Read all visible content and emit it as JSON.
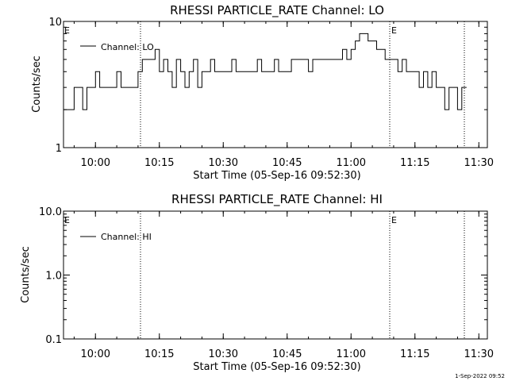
{
  "chart_data": [
    {
      "type": "line",
      "title": "RHESSI PARTICLE_RATE Channel: LO",
      "xlabel": "Start Time (05-Sep-16 09:52:30)",
      "ylabel": "Counts/sec",
      "yscale": "log",
      "ylim": [
        1,
        10
      ],
      "yticks": [
        "1",
        "10"
      ],
      "xlim": [
        "09:52:30",
        "11:32:00"
      ],
      "xticks": [
        "10:00",
        "10:15",
        "10:30",
        "10:45",
        "11:00",
        "11:15",
        "11:30"
      ],
      "legend_position": "top-left",
      "series": [
        {
          "name": "Channel: LO",
          "x": [
            "09:52:30",
            "09:54:00",
            "09:55:00",
            "09:55:30",
            "09:56:00",
            "09:57:00",
            "09:58:00",
            "09:59:00",
            "10:00:00",
            "10:01:00",
            "10:02:00",
            "10:03:00",
            "10:04:00",
            "10:05:00",
            "10:06:00",
            "10:07:00",
            "10:08:00",
            "10:09:00",
            "10:10:00",
            "10:11:00",
            "10:12:00",
            "10:13:00",
            "10:14:00",
            "10:15:00",
            "10:16:00",
            "10:17:00",
            "10:18:00",
            "10:19:00",
            "10:20:00",
            "10:21:00",
            "10:22:00",
            "10:23:00",
            "10:24:00",
            "10:25:00",
            "10:26:00",
            "10:27:00",
            "10:28:00",
            "10:29:00",
            "10:30:00",
            "10:31:00",
            "10:32:00",
            "10:33:00",
            "10:34:00",
            "10:35:00",
            "10:36:00",
            "10:37:00",
            "10:38:00",
            "10:39:00",
            "10:40:00",
            "10:41:00",
            "10:42:00",
            "10:43:00",
            "10:44:00",
            "10:45:00",
            "10:46:00",
            "10:47:00",
            "10:48:00",
            "10:49:00",
            "10:50:00",
            "10:51:00",
            "10:52:00",
            "10:53:00",
            "10:54:00",
            "10:55:00",
            "10:56:00",
            "10:57:00",
            "10:58:00",
            "10:59:00",
            "11:00:00",
            "11:01:00",
            "11:02:00",
            "11:03:00",
            "11:04:00",
            "11:05:00",
            "11:06:00",
            "11:07:00",
            "11:08:00",
            "11:09:00",
            "11:10:00",
            "11:11:00",
            "11:12:00",
            "11:13:00",
            "11:14:00",
            "11:15:00",
            "11:16:00",
            "11:17:00",
            "11:18:00",
            "11:19:00",
            "11:20:00",
            "11:21:00",
            "11:22:00",
            "11:23:00",
            "11:24:00",
            "11:25:00",
            "11:26:00"
          ],
          "y": [
            2,
            2,
            3,
            3,
            3,
            2,
            3,
            3,
            4,
            3,
            3,
            3,
            3,
            4,
            3,
            3,
            3,
            3,
            4,
            5,
            5,
            5,
            6,
            4,
            5,
            4,
            3,
            5,
            4,
            3,
            4,
            5,
            3,
            4,
            4,
            5,
            4,
            4,
            4,
            4,
            5,
            4,
            4,
            4,
            4,
            4,
            5,
            4,
            4,
            4,
            5,
            4,
            4,
            4,
            5,
            5,
            5,
            5,
            4,
            5,
            5,
            5,
            5,
            5,
            5,
            5,
            6,
            5,
            6,
            7,
            8,
            8,
            7,
            7,
            6,
            6,
            5,
            5,
            5,
            4,
            5,
            4,
            4,
            4,
            3,
            4,
            3,
            4,
            3,
            3,
            2,
            3,
            3,
            2,
            3
          ]
        }
      ],
      "annotations": [
        "E",
        "E"
      ]
    },
    {
      "type": "line",
      "title": "RHESSI PARTICLE_RATE Channel: HI",
      "xlabel": "Start Time (05-Sep-16 09:52:30)",
      "ylabel": "Counts/sec",
      "yscale": "log",
      "ylim": [
        0.1,
        10
      ],
      "yticks": [
        "0.1",
        "1.0",
        "10.0"
      ],
      "xlim": [
        "09:52:30",
        "11:32:00"
      ],
      "xticks": [
        "10:00",
        "10:15",
        "10:30",
        "10:45",
        "11:00",
        "11:15",
        "11:30"
      ],
      "legend_position": "top-left",
      "series": [
        {
          "name": "Channel: HI",
          "x": [],
          "y": []
        }
      ],
      "annotations": [
        "E",
        "E"
      ]
    }
  ],
  "footer": {
    "timestamp": "1-Sep-2022 09:52"
  }
}
